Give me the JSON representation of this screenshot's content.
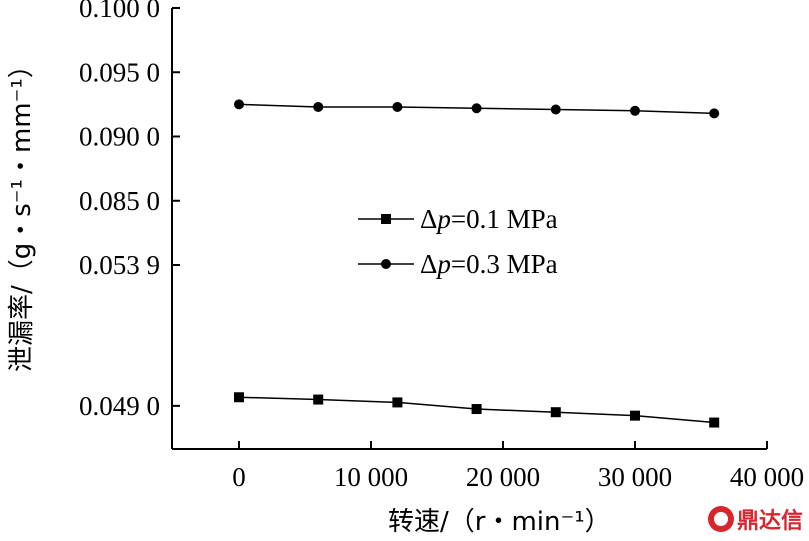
{
  "chart_data": {
    "type": "line",
    "xlabel": "转速/（r・min⁻¹）",
    "ylabel": "泄漏率/（g・s⁻¹・mm⁻¹）",
    "x_ticks": [
      "0",
      "10 000",
      "20 000",
      "30 000",
      "40 000"
    ],
    "x_tick_values": [
      0,
      10000,
      20000,
      30000,
      40000
    ],
    "xlim": [
      -5000,
      40000
    ],
    "y_axis_break": true,
    "y_ticks": [
      "0.049 0",
      "0.053 9",
      "0.085 0",
      "0.090 0",
      "0.095 0",
      "0.100 0"
    ],
    "y_tick_values": [
      0.049,
      0.0539,
      0.085,
      0.09,
      0.095,
      0.1
    ],
    "y_lower_segment": [
      0.0475,
      0.0539
    ],
    "y_upper_segment": [
      0.08,
      0.1
    ],
    "legend_position": "center-right",
    "x": [
      0,
      6000,
      12000,
      18000,
      24000,
      30000,
      36000
    ],
    "series": [
      {
        "name": "Δp=0.1 MPa",
        "marker": "square",
        "values": [
          0.0493,
          0.04922,
          0.04912,
          0.04889,
          0.04878,
          0.04866,
          0.04842
        ]
      },
      {
        "name": "Δp=0.3 MPa",
        "marker": "circle",
        "values": [
          0.0925,
          0.0923,
          0.0923,
          0.0922,
          0.0921,
          0.092,
          0.0918
        ]
      }
    ]
  },
  "legend": {
    "delta": "Δ",
    "p": "p",
    "entry1_rest": "=0.1 MPa",
    "entry2_rest": "=0.3 MPa"
  },
  "watermark": {
    "text": "鼎达信"
  }
}
